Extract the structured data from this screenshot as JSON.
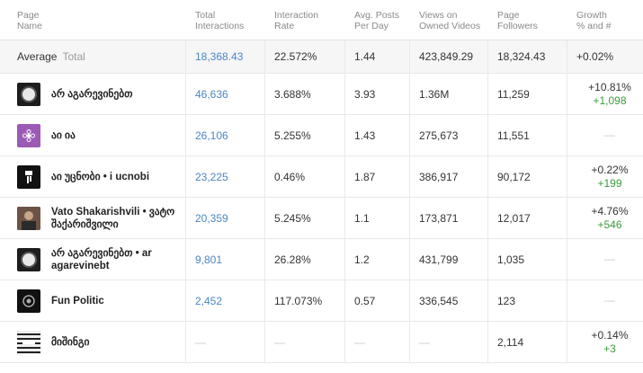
{
  "header": {
    "page": "Page\nName",
    "interactions": "Total\nInteractions",
    "rate": "Interaction\nRate",
    "posts": "Avg. Posts\nPer Day",
    "views": "Views on\nOwned Videos",
    "followers": "Page\nFollowers",
    "growth": "Growth\n% and #"
  },
  "average": {
    "label": "Average",
    "sub": "Total",
    "interactions": "18,368.43",
    "rate": "22.572%",
    "posts": "1.44",
    "views": "423,849.29",
    "followers": "18,324.43",
    "growth": "+0.02%"
  },
  "rows": [
    {
      "name": "არ აგარევინებთ",
      "icon": "globe-logo-icon",
      "interactions": "46,636",
      "rate": "3.688%",
      "posts": "3.93",
      "views": "1.36M",
      "followers": "11,259",
      "growth_pct": "+10.81%",
      "growth_num": "+1,098"
    },
    {
      "name": "აი ია",
      "icon": "flower-logo-icon",
      "interactions": "26,106",
      "rate": "5.255%",
      "posts": "1.43",
      "views": "275,673",
      "followers": "11,551",
      "growth_pct": "—",
      "growth_num": ""
    },
    {
      "name": "აი უცნობი • i ucnobi",
      "icon": "figure-logo-icon",
      "interactions": "23,225",
      "rate": "0.46%",
      "posts": "1.87",
      "views": "386,917",
      "followers": "90,172",
      "growth_pct": "+0.22%",
      "growth_num": "+199"
    },
    {
      "name": "Vato Shakarishvili • ვატო შაქარიშვილი",
      "icon": "portrait-photo-icon",
      "interactions": "20,359",
      "rate": "5.245%",
      "posts": "1.1",
      "views": "173,871",
      "followers": "12,017",
      "growth_pct": "+4.76%",
      "growth_num": "+546"
    },
    {
      "name": "არ აგარევინებთ • ar agarevinebt",
      "icon": "globe-logo-icon",
      "interactions": "9,801",
      "rate": "26.28%",
      "posts": "1.2",
      "views": "431,799",
      "followers": "1,035",
      "growth_pct": "—",
      "growth_num": ""
    },
    {
      "name": "Fun Politic",
      "icon": "emblem-logo-icon",
      "interactions": "2,452",
      "rate": "117.073%",
      "posts": "0.57",
      "views": "336,545",
      "followers": "123",
      "growth_pct": "—",
      "growth_num": ""
    },
    {
      "name": "მიშინგი",
      "icon": "pattern-logo-icon",
      "interactions": "—",
      "rate": "—",
      "posts": "—",
      "views": "—",
      "followers": "2,114",
      "growth_pct": "+0.14%",
      "growth_num": "+3"
    }
  ]
}
